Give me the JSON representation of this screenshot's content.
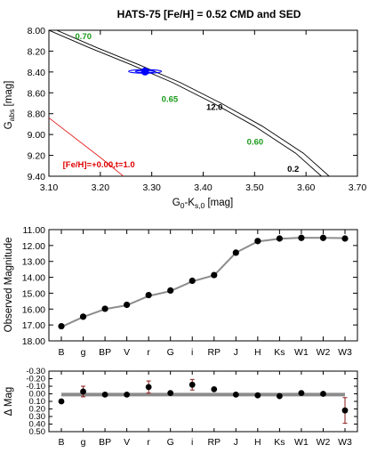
{
  "title": "HATS-75 [Fe/H] = 0.52 CMD and SED",
  "colors": {
    "isochrone": "#000000",
    "reference_isochrone": "#e00000",
    "mass_label": "#1a9a1a",
    "star_point": "#0000ff",
    "sed_model": "#8c8c8c"
  },
  "chart_data": [
    {
      "type": "line",
      "name": "cmd",
      "xlabel_main": "G",
      "xlabel_sub1": "0",
      "xlabel_mid": "-K",
      "xlabel_sub2": "s,0",
      "xlabel_unit": " [mag]",
      "ylabel_main": "G",
      "ylabel_sub": "abs",
      "ylabel_unit": " [mag]",
      "xlim": [
        3.1,
        3.7
      ],
      "ylim": [
        9.4,
        8.0
      ],
      "y_inverted": true,
      "xticks": [
        "3.10",
        "3.20",
        "3.30",
        "3.40",
        "3.50",
        "3.60",
        "3.70"
      ],
      "yticks": [
        "8.00",
        "8.20",
        "8.40",
        "8.60",
        "8.80",
        "9.00",
        "9.20",
        "9.40"
      ],
      "grid": false,
      "series": [
        {
          "x": [
            3.1,
            3.18,
            3.26,
            3.34,
            3.42,
            3.5,
            3.58,
            3.63
          ],
          "y": [
            8.0,
            8.17,
            8.33,
            8.5,
            8.7,
            8.92,
            9.18,
            9.4
          ]
        },
        {
          "x": [
            3.115,
            3.195,
            3.275,
            3.355,
            3.435,
            3.515,
            3.595,
            3.645
          ],
          "y": [
            8.0,
            8.17,
            8.33,
            8.5,
            8.7,
            8.92,
            9.18,
            9.4
          ]
        },
        {
          "name": "[Fe/H]=+0.00,t=1.0",
          "x": [
            3.1,
            3.15,
            3.2,
            3.245
          ],
          "y": [
            8.84,
            9.03,
            9.22,
            9.4
          ]
        }
      ],
      "mass_labels": [
        {
          "text": "0.70",
          "x": 3.167,
          "y": 8.06
        },
        {
          "text": "0.65",
          "x": 3.335,
          "y": 8.66
        },
        {
          "text": "0.60",
          "x": 3.501,
          "y": 9.07
        }
      ],
      "age_labels": [
        {
          "text": "12.0",
          "x": 3.422,
          "y": 8.74
        },
        {
          "text": "0.2",
          "x": 3.575,
          "y": 9.33
        }
      ],
      "reference_label": "[Fe/H]=+0.00,t=1.0",
      "reference_label_pos": {
        "x": 3.127,
        "y": 9.29
      },
      "star": {
        "x": 3.287,
        "y": 8.395,
        "ell1": [
          0.032,
          0.017
        ],
        "ell2": [
          0.019,
          0.01
        ]
      }
    },
    {
      "type": "line",
      "name": "sed",
      "ylabel": "Observed Magnitude",
      "categories": [
        "B",
        "g",
        "BP",
        "V",
        "r",
        "G",
        "i",
        "RP",
        "J",
        "H",
        "Ks",
        "W1",
        "W2",
        "W3"
      ],
      "ylim": [
        18.0,
        11.0
      ],
      "y_inverted": true,
      "yticks": [
        "11.00",
        "12.00",
        "13.00",
        "14.00",
        "15.00",
        "16.00",
        "17.00",
        "18.00"
      ],
      "grid": false,
      "observed": [
        17.08,
        16.48,
        15.98,
        15.73,
        15.12,
        14.83,
        14.22,
        13.86,
        12.45,
        11.72,
        11.56,
        11.52,
        11.52,
        11.56
      ],
      "model": [
        17.12,
        16.5,
        16.0,
        15.76,
        15.18,
        14.87,
        14.26,
        13.88,
        12.45,
        11.75,
        11.57,
        11.51,
        11.52,
        11.53
      ]
    },
    {
      "type": "scatter",
      "name": "residuals",
      "ylabel": "Δ Mag",
      "categories": [
        "B",
        "g",
        "BP",
        "V",
        "r",
        "G",
        "i",
        "RP",
        "J",
        "H",
        "Ks",
        "W1",
        "W2",
        "W3"
      ],
      "ylim": [
        0.5,
        -0.3
      ],
      "y_inverted": true,
      "yticks": [
        "-0.30",
        "-0.20",
        "-0.10",
        "0.00",
        "0.10",
        "0.20",
        "0.30",
        "0.40",
        "0.50"
      ],
      "grid": false,
      "values": [
        0.1,
        -0.03,
        0.01,
        0.01,
        -0.09,
        -0.01,
        -0.12,
        -0.06,
        0.01,
        0.02,
        0.03,
        -0.01,
        0.0,
        0.22
      ],
      "errors": [
        0.0,
        0.07,
        0.0,
        0.0,
        0.08,
        0.0,
        0.07,
        0.0,
        0.0,
        0.0,
        0.0,
        0.0,
        0.0,
        0.17
      ],
      "model_band": [
        0.01,
        0.01,
        0.01,
        0.01,
        0.01,
        0.01,
        0.01,
        0.01,
        0.01,
        0.01,
        0.01,
        0.01,
        0.01,
        0.01
      ]
    }
  ]
}
